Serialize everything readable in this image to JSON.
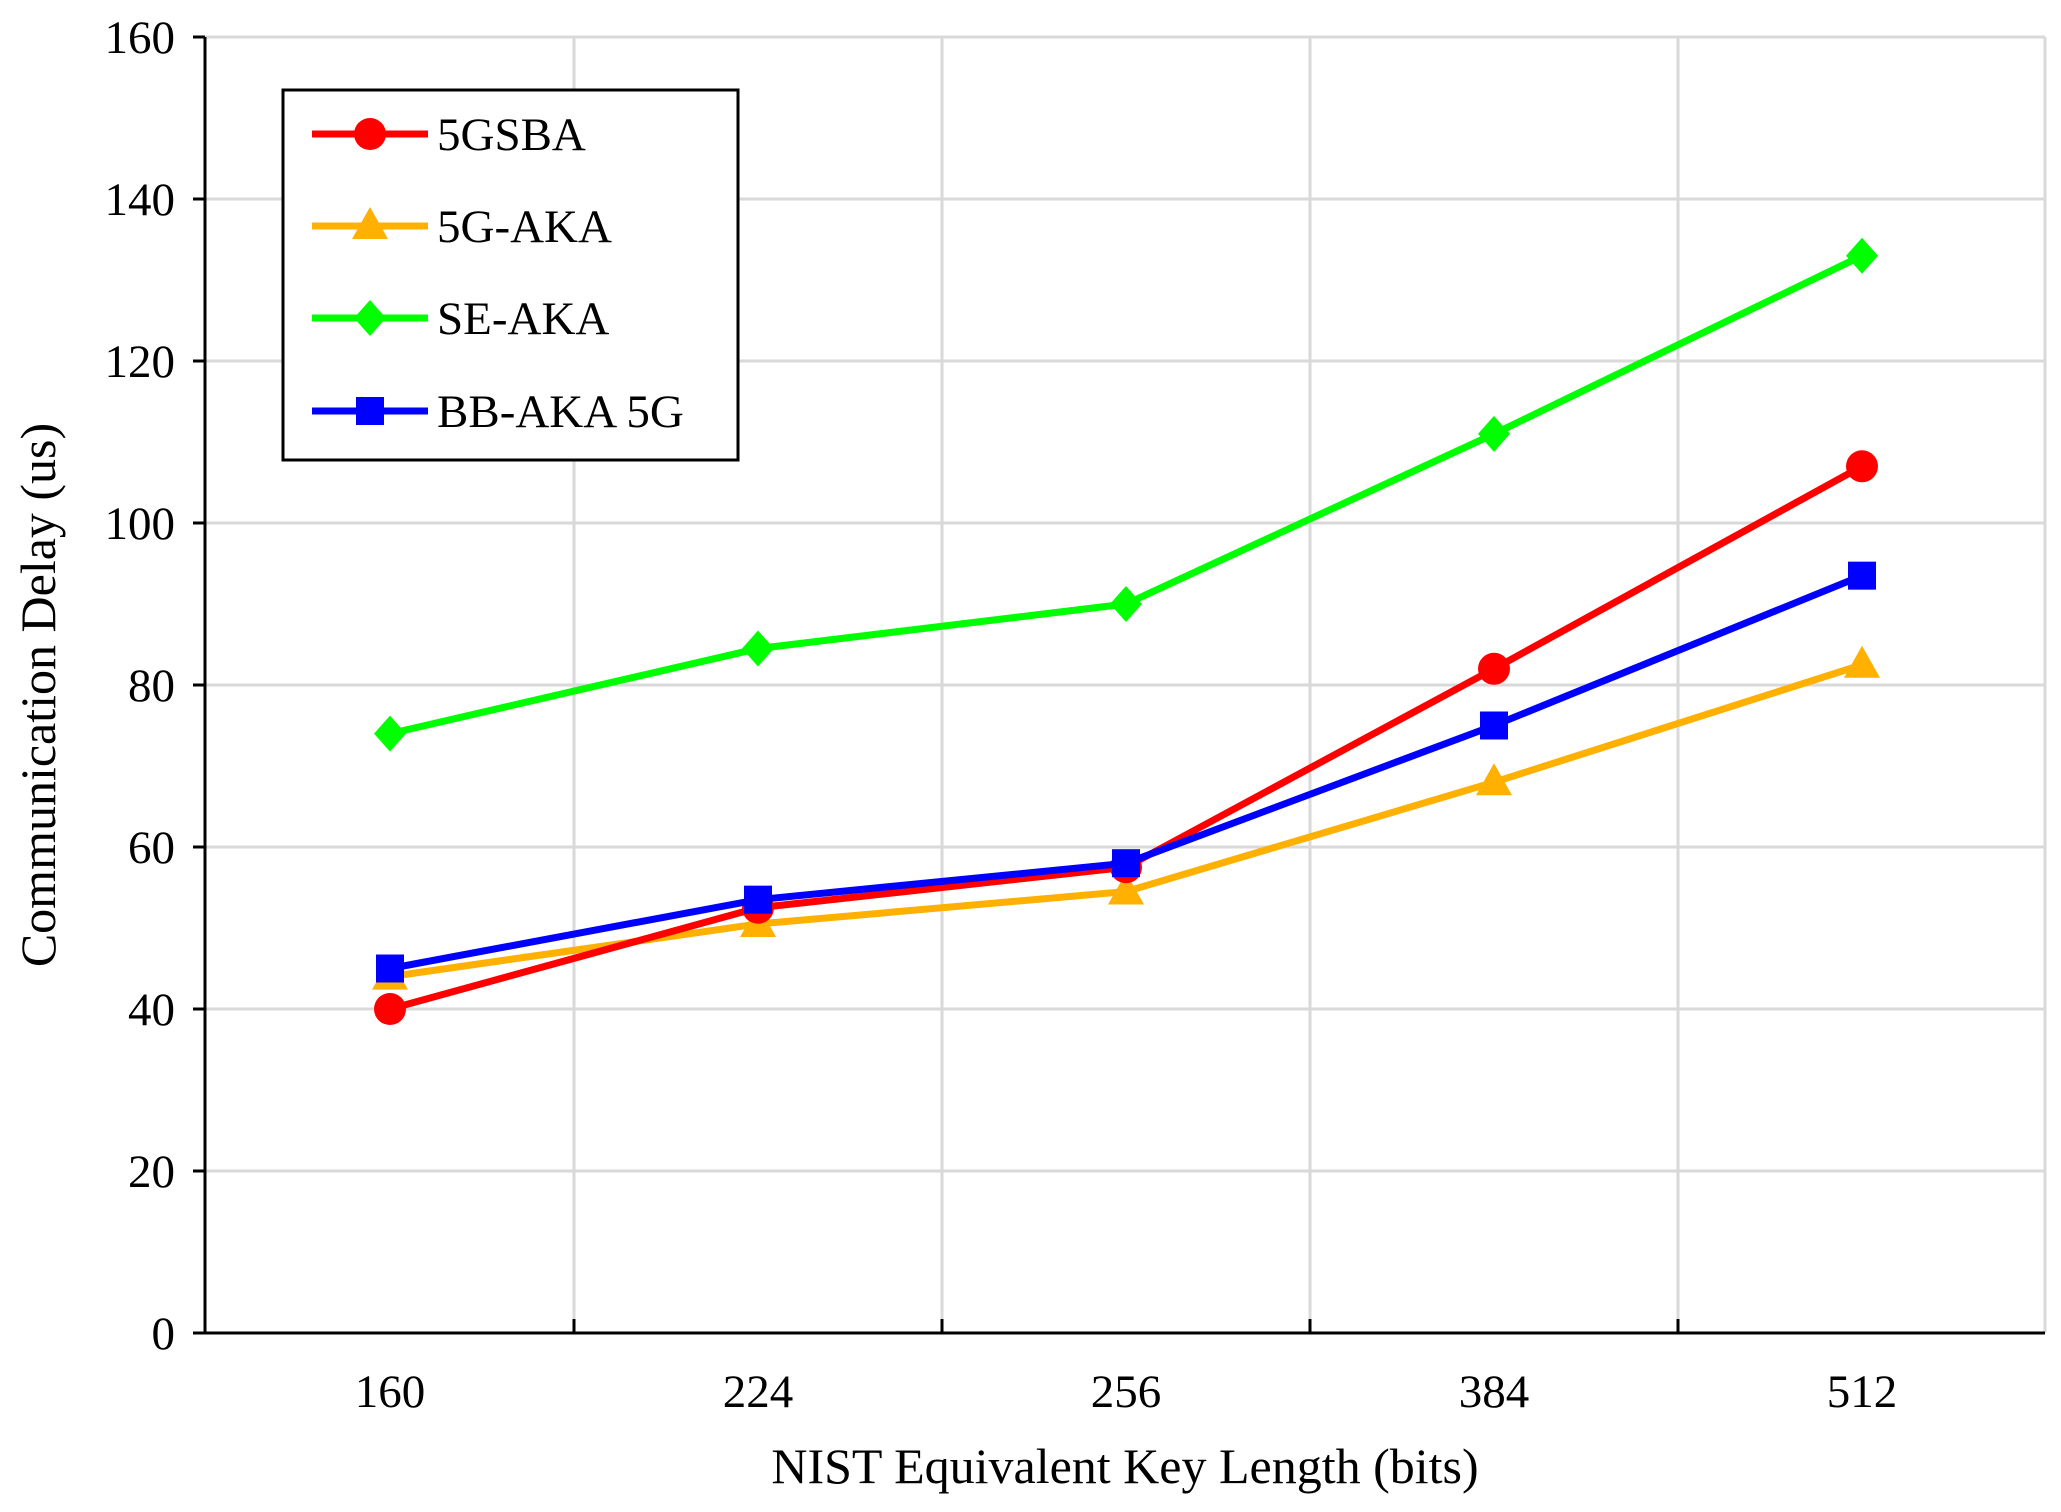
{
  "chart_data": {
    "type": "line",
    "title": "",
    "xlabel": "NIST Equivalent Key Length (bits)",
    "ylabel": "Communication Delay (us)",
    "categories": [
      "160",
      "224",
      "256",
      "384",
      "512"
    ],
    "ylim": [
      0,
      160
    ],
    "yticks": [
      0,
      20,
      40,
      60,
      80,
      100,
      120,
      140,
      160
    ],
    "grid": true,
    "legend_position": "top-left",
    "series": [
      {
        "name": "5GSBA",
        "color": "#ff0000",
        "marker": "circle",
        "values": [
          40,
          52.5,
          57.5,
          82,
          107
        ]
      },
      {
        "name": "5G-AKA",
        "color": "#ffb000",
        "marker": "triangle",
        "values": [
          44,
          50.5,
          54.5,
          68,
          82.5
        ]
      },
      {
        "name": "SE-AKA",
        "color": "#00ff00",
        "marker": "diamond",
        "values": [
          74,
          84.5,
          90,
          111,
          133
        ]
      },
      {
        "name": "BB-AKA 5G",
        "color": "#0000ff",
        "marker": "square",
        "values": [
          45,
          53.5,
          58,
          75,
          93.5
        ]
      }
    ]
  }
}
